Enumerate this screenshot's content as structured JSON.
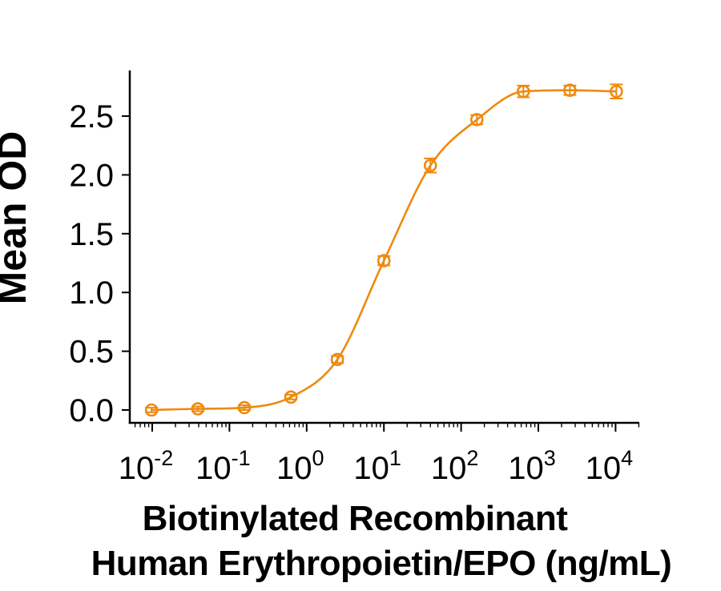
{
  "figure": {
    "background": "#FFFFFF",
    "axis_color": "#000000",
    "text_color": "#000000"
  },
  "chart_data": {
    "type": "scatter",
    "subtype": "dose-response-4PL",
    "title": "",
    "ylabel": "Mean OD",
    "xlabel_line1": "Biotinylated Recombinant",
    "xlabel_line2": "Human Erythropoietin/EPO (ng/mL)",
    "x_scale": "log10",
    "xlim_log10": [
      -2.29,
      4.315
    ],
    "ylim": [
      -0.11,
      3.0
    ],
    "grid": false,
    "legend": "none",
    "x_major_ticks": [
      {
        "value": 0.01,
        "base": "10",
        "exp": "-2"
      },
      {
        "value": 0.1,
        "base": "10",
        "exp": "-1"
      },
      {
        "value": 1,
        "base": "10",
        "exp": "0"
      },
      {
        "value": 10,
        "base": "10",
        "exp": "1"
      },
      {
        "value": 100,
        "base": "10",
        "exp": "2"
      },
      {
        "value": 1000,
        "base": "10",
        "exp": "3"
      },
      {
        "value": 10000,
        "base": "10",
        "exp": "4"
      }
    ],
    "y_ticks": [
      {
        "value": 0.0,
        "label": "0.0"
      },
      {
        "value": 0.5,
        "label": "0.5"
      },
      {
        "value": 1.0,
        "label": "1.0"
      },
      {
        "value": 1.5,
        "label": "1.5"
      },
      {
        "value": 2.0,
        "label": "2.0"
      },
      {
        "value": 2.5,
        "label": "2.5"
      }
    ],
    "series": [
      {
        "name": "Biotinylated Recombinant Human Erythropoietin/EPO",
        "color": "#EE8A0F",
        "marker": "open-circle",
        "error_bars": true,
        "points": [
          {
            "x": 0.0098,
            "y": 0.0,
            "err": 0.02
          },
          {
            "x": 0.039,
            "y": 0.01,
            "err": 0.02
          },
          {
            "x": 0.156,
            "y": 0.02,
            "err": 0.02
          },
          {
            "x": 0.625,
            "y": 0.11,
            "err": 0.02
          },
          {
            "x": 2.5,
            "y": 0.43,
            "err": 0.03
          },
          {
            "x": 10,
            "y": 1.27,
            "err": 0.04
          },
          {
            "x": 40,
            "y": 2.08,
            "err": 0.06
          },
          {
            "x": 160,
            "y": 2.47,
            "err": 0.04
          },
          {
            "x": 640,
            "y": 2.71,
            "err": 0.05
          },
          {
            "x": 2560,
            "y": 2.72,
            "err": 0.04
          },
          {
            "x": 10240,
            "y": 2.71,
            "err": 0.06
          }
        ]
      }
    ]
  }
}
